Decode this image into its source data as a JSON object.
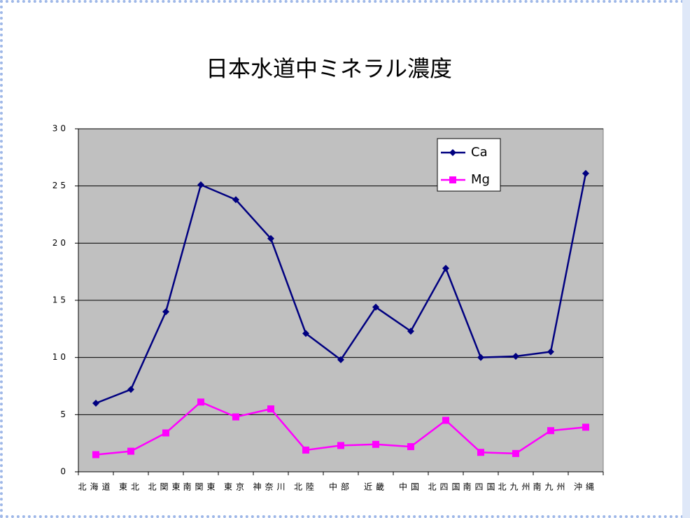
{
  "chart_data": {
    "type": "line",
    "title": "日本水道中ミネラル濃度",
    "categories": [
      "北海道",
      "東北",
      "北関東",
      "南関東",
      "東京",
      "神奈川",
      "北陸",
      "中部",
      "近畿",
      "中国",
      "北四国",
      "南四国",
      "北九州",
      "南九州",
      "沖縄"
    ],
    "series": [
      {
        "name": "Ca",
        "color": "#000080",
        "marker": "diamond",
        "values": [
          6.0,
          7.2,
          14.0,
          25.1,
          23.8,
          20.4,
          12.1,
          9.8,
          14.4,
          12.3,
          17.8,
          10.0,
          10.1,
          10.5,
          26.1
        ]
      },
      {
        "name": "Mg",
        "color": "#ff00ff",
        "marker": "square",
        "values": [
          1.5,
          1.8,
          3.4,
          6.1,
          4.8,
          5.5,
          1.9,
          2.3,
          2.4,
          2.2,
          4.5,
          1.7,
          1.6,
          3.6,
          3.9
        ]
      }
    ],
    "ylim": [
      0,
      30
    ],
    "yticks": [
      0,
      5,
      10,
      15,
      20,
      25,
      30
    ],
    "grid": true,
    "legend": "top-right"
  }
}
